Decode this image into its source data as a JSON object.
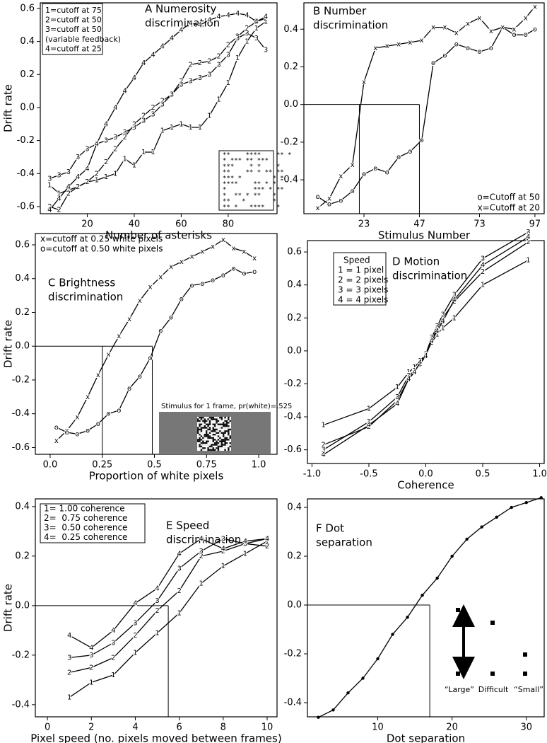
{
  "chart_data": [
    {
      "type": "line",
      "title": [
        "A Numerosity",
        "discrimination"
      ],
      "xlabel": "Number of asterisks",
      "ylabel": "Drift rate",
      "color": "#000000",
      "xlim": [
        0,
        100.8
      ],
      "ylim": [
        -0.643,
        0.634
      ],
      "xticks": [
        20,
        40,
        60,
        80
      ],
      "yticks": [
        0.6,
        0.4,
        0.2,
        {
          "value": 0,
          "label": "0.0"
        },
        -0.2,
        -0.4,
        -0.6
      ],
      "x": [
        4,
        8,
        12,
        16,
        20,
        24,
        28,
        32,
        36,
        40,
        44,
        48,
        52,
        56,
        60,
        64,
        68,
        72,
        76,
        80,
        84,
        88,
        92,
        96
      ],
      "series": [
        {
          "name": "1=cutoff at 75",
          "marker": "1",
          "values": [
            -0.47,
            -0.52,
            -0.5,
            -0.48,
            -0.45,
            -0.44,
            -0.42,
            -0.4,
            -0.31,
            -0.35,
            -0.27,
            -0.27,
            -0.14,
            -0.12,
            -0.1,
            -0.12,
            -0.12,
            -0.05,
            0.05,
            0.15,
            0.3,
            0.4,
            0.48,
            0.52
          ]
        },
        {
          "name": "2=cutoff at 50",
          "marker": "2",
          "values": [
            -0.6,
            -0.62,
            -0.52,
            -0.48,
            -0.45,
            -0.4,
            -0.33,
            -0.25,
            -0.18,
            -0.1,
            -0.05,
            0,
            0.04,
            0.08,
            0.16,
            0.26,
            0.27,
            0.28,
            0.31,
            0.38,
            0.43,
            0.48,
            0.52,
            0.54
          ]
        },
        {
          "name": "3=cutoff at 50",
          "name_note": "(variable feedback)",
          "marker": "3",
          "values": [
            -0.43,
            -0.41,
            -0.39,
            -0.3,
            -0.25,
            -0.22,
            -0.2,
            -0.18,
            -0.15,
            -0.12,
            -0.08,
            -0.04,
            0.02,
            0.08,
            0.14,
            0.16,
            0.18,
            0.2,
            0.26,
            0.32,
            0.42,
            0.45,
            0.42,
            0.35
          ]
        },
        {
          "name": "4=cutoff at 25",
          "marker": "4",
          "values": [
            -0.62,
            -0.55,
            -0.48,
            -0.42,
            -0.37,
            -0.22,
            -0.1,
            0,
            0.1,
            0.18,
            0.27,
            0.32,
            0.37,
            0.42,
            0.47,
            0.51,
            0.5,
            0.53,
            0.55,
            0.56,
            0.57,
            0.56,
            0.52,
            0.55
          ]
        }
      ],
      "inset_lines": [
        "**    ****    ** *",
        "* *** ** ***",
        "***    * *    *",
        "**    ** * ** **",
        "*** *        * *",
        "****    ** * *",
        "*       *** * **",
        "*  ** * **   *",
        "**   *       *",
        "** *   ****   *"
      ]
    },
    {
      "type": "line",
      "title": [
        "B Number",
        "discrimination"
      ],
      "xlabel": "Stimulus Number",
      "color": "#000000",
      "xlim": [
        -3,
        101
      ],
      "ylim": [
        -0.58,
        0.54
      ],
      "xticks": [
        23,
        47,
        73,
        97
      ],
      "yticks": [
        0.4,
        0.2,
        {
          "value": 0,
          "label": "0.0"
        },
        -0.2,
        -0.4
      ],
      "x": [
        3,
        8,
        13,
        18,
        23,
        28,
        33,
        38,
        43,
        48,
        53,
        58,
        63,
        68,
        73,
        78,
        83,
        88,
        93,
        97
      ],
      "reference_x": [
        21,
        47
      ],
      "series": [
        {
          "name": "o=Cutoff at 50",
          "marker": "o",
          "values": [
            -0.49,
            -0.53,
            -0.51,
            -0.46,
            -0.37,
            -0.34,
            -0.36,
            -0.28,
            -0.25,
            -0.19,
            0.22,
            0.26,
            0.32,
            0.3,
            0.28,
            0.3,
            0.41,
            0.37,
            0.37,
            0.4
          ]
        },
        {
          "name": "x=Cutoff at 20",
          "marker": "x",
          "values": [
            -0.55,
            -0.5,
            -0.38,
            -0.32,
            0.12,
            0.3,
            0.31,
            0.32,
            0.33,
            0.34,
            0.41,
            0.41,
            0.38,
            0.43,
            0.46,
            0.39,
            0.41,
            0.4,
            0.46,
            0.52
          ]
        }
      ]
    },
    {
      "type": "line",
      "title": [
        "C Brightness",
        "discrimination"
      ],
      "xlabel": "Proportion of white pixels",
      "ylabel": "Drift rate",
      "color": "#000000",
      "xlim": [
        -0.071,
        1.088
      ],
      "ylim": [
        -0.64,
        0.667
      ],
      "xticks": [
        {
          "value": 0,
          "label": "0.0"
        },
        0.25,
        0.5,
        0.75,
        {
          "value": 1,
          "label": "1.0"
        }
      ],
      "yticks": [
        0.6,
        0.4,
        0.2,
        {
          "value": 0,
          "label": "0.0"
        },
        -0.2,
        -0.4,
        -0.6
      ],
      "x": [
        0.03,
        0.08,
        0.13,
        0.18,
        0.23,
        0.28,
        0.33,
        0.38,
        0.43,
        0.48,
        0.53,
        0.58,
        0.63,
        0.68,
        0.73,
        0.78,
        0.83,
        0.88,
        0.93,
        0.98
      ],
      "reference_x": [
        0.25,
        0.49
      ],
      "series": [
        {
          "name": "x=cutoff at 0.25 white pixels",
          "marker": "x",
          "values": [
            -0.56,
            -0.5,
            -0.42,
            -0.3,
            -0.17,
            -0.05,
            0.06,
            0.16,
            0.27,
            0.35,
            0.41,
            0.47,
            0.5,
            0.53,
            0.56,
            0.59,
            0.63,
            0.58,
            0.56,
            0.52
          ]
        },
        {
          "name": "o=cutoff at 0.50 white pixels",
          "marker": "o",
          "values": [
            -0.48,
            -0.51,
            -0.52,
            -0.5,
            -0.46,
            -0.4,
            -0.38,
            -0.25,
            -0.18,
            -0.07,
            0.09,
            0.17,
            0.28,
            0.36,
            0.37,
            0.39,
            0.42,
            0.46,
            0.43,
            0.44
          ]
        }
      ],
      "inset_caption": "Stimulus for 1 frame, pr(white)=.525"
    },
    {
      "type": "line",
      "title": [
        "D Motion",
        "discrimination"
      ],
      "xlabel": "Coherence",
      "color": "#000000",
      "xlim": [
        -1.04,
        1.04
      ],
      "ylim": [
        -0.683,
        0.669
      ],
      "xticks": [
        {
          "value": -1,
          "label": "-1.0"
        },
        -0.5,
        {
          "value": 0,
          "label": "0.0"
        },
        0.5,
        {
          "value": 1,
          "label": "1.0"
        }
      ],
      "yticks": [
        0.6,
        0.4,
        0.2,
        {
          "value": 0,
          "label": "0.0"
        },
        -0.2,
        -0.4,
        -0.6
      ],
      "x": [
        -0.9,
        -0.5,
        -0.25,
        -0.15,
        -0.1,
        -0.05,
        0,
        0.05,
        0.1,
        0.15,
        0.25,
        0.5,
        0.9
      ],
      "legend_title": "Speed",
      "series": [
        {
          "name": "1 = 1 pixel",
          "marker": "1",
          "values": [
            -0.45,
            -0.35,
            -0.22,
            -0.13,
            -0.1,
            -0.06,
            -0.02,
            0.05,
            0.1,
            0.14,
            0.2,
            0.4,
            0.55
          ]
        },
        {
          "name": "2 = 2 pixels",
          "marker": "2",
          "values": [
            -0.57,
            -0.46,
            -0.3,
            -0.17,
            -0.12,
            -0.08,
            -0.03,
            0.07,
            0.13,
            0.2,
            0.3,
            0.48,
            0.66
          ]
        },
        {
          "name": "3 = 3 pixels",
          "marker": "3",
          "values": [
            -0.6,
            -0.43,
            -0.28,
            -0.15,
            -0.12,
            -0.08,
            -0.02,
            0.08,
            0.15,
            0.22,
            0.34,
            0.56,
            0.72
          ]
        },
        {
          "name": "4 = 4 pixels",
          "marker": "4",
          "values": [
            -0.63,
            -0.45,
            -0.32,
            -0.17,
            -0.13,
            -0.07,
            -0.03,
            0.06,
            0.12,
            0.18,
            0.31,
            0.52,
            0.69
          ]
        }
      ]
    },
    {
      "type": "line",
      "title": [
        "E Speed",
        "discrimination"
      ],
      "xlabel": "Pixel speed (no. pixels moved between frames)",
      "ylabel": "Drift rate",
      "color": "#000000",
      "xlim": [
        -0.55,
        10.45
      ],
      "ylim": [
        -0.449,
        0.431
      ],
      "xticks": [
        0,
        2,
        4,
        6,
        8,
        10
      ],
      "yticks": [
        0.4,
        0.2,
        {
          "value": 0,
          "label": "0.0"
        },
        -0.2,
        -0.4
      ],
      "x": [
        1,
        2,
        3,
        4,
        5,
        6,
        7,
        8,
        9,
        10
      ],
      "reference_x": [
        5.5
      ],
      "series": [
        {
          "name": "1= 1.00 coherence",
          "marker": "1",
          "values": [
            -0.37,
            -0.31,
            -0.28,
            -0.19,
            -0.11,
            -0.03,
            0.09,
            0.16,
            0.21,
            0.26
          ]
        },
        {
          "name": "2=  0.75 coherence",
          "marker": "2",
          "values": [
            -0.27,
            -0.25,
            -0.21,
            -0.12,
            -0.02,
            0.06,
            0.2,
            0.22,
            0.25,
            0.24
          ]
        },
        {
          "name": "3=  0.50 coherence",
          "marker": "3",
          "values": [
            -0.21,
            -0.2,
            -0.15,
            -0.07,
            0.02,
            0.15,
            0.22,
            0.27,
            0.25,
            0.27
          ]
        },
        {
          "name": "4=  0.25 coherence",
          "marker": "4",
          "values": [
            -0.12,
            -0.17,
            -0.1,
            0.01,
            0.07,
            0.21,
            0.27,
            0.23,
            0.26,
            0.27
          ]
        }
      ]
    },
    {
      "type": "line",
      "title": [
        "F Dot",
        "separation"
      ],
      "xlabel": "Dot separation",
      "color": "#000000",
      "xlim": [
        0.53,
        32.4
      ],
      "ylim": [
        -0.458,
        0.435
      ],
      "xticks": [
        10,
        20,
        30
      ],
      "yticks": [
        0.4,
        0.2,
        {
          "value": 0,
          "label": "0.0"
        },
        -0.2,
        -0.4
      ],
      "x": [
        2,
        4,
        6,
        8,
        10,
        12,
        14,
        16,
        18,
        20,
        22,
        24,
        26,
        28,
        30,
        32
      ],
      "reference_x": [
        17
      ],
      "series": [
        {
          "values": [
            -0.46,
            -0.43,
            -0.36,
            -0.3,
            -0.22,
            -0.12,
            -0.05,
            0.04,
            0.11,
            0.2,
            0.27,
            0.32,
            0.36,
            0.4,
            0.42,
            0.44
          ]
        }
      ],
      "inset_labels": [
        "“Large”",
        "Difficult",
        "“Small”"
      ]
    }
  ]
}
